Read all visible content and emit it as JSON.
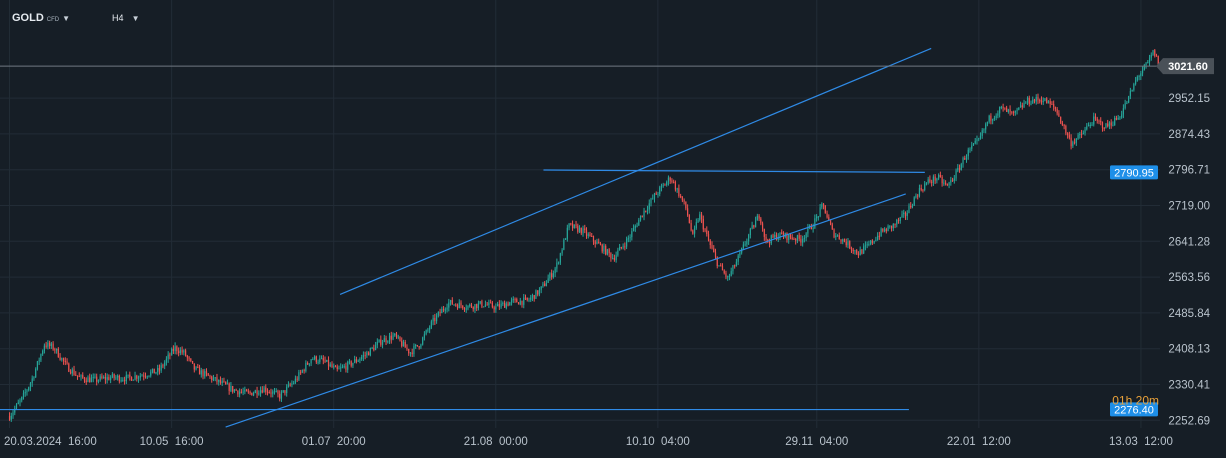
{
  "toolbar": {
    "symbol": "GOLD",
    "symbol_sub": "CFD",
    "timeframe": "H4",
    "caret_icon": "chevron-down-icon"
  },
  "chart_data": {
    "type": "candlestick",
    "title": "",
    "xlabel": "",
    "ylabel": "",
    "ylim": [
      2236,
      3100
    ],
    "y_ticks": [
      "3021.60",
      "2952.15",
      "2874.43",
      "2796.71",
      "2719.00",
      "2641.28",
      "2563.56",
      "2485.84",
      "2408.13",
      "2330.41",
      "2252.69"
    ],
    "x_ticks": [
      "20.03.2024  16:00",
      "10.05  16:00",
      "01.07  20:00",
      "21.08  00:00",
      "10.10  04:00",
      "29.11  04:00",
      "22.01  12:00",
      "13.03  12:00"
    ],
    "x_range_days": [
      -3,
      362
    ],
    "x_tick_days": [
      0,
      51,
      102,
      153,
      204,
      254,
      305,
      356
    ],
    "current_price": "3021.60",
    "price_tags": [
      "2790.95",
      "2276.40"
    ],
    "countdown": "01h 20m",
    "colors": {
      "up": "#26a69a",
      "down": "#ef5350",
      "trendline": "#2f8ae5",
      "tag_bg": "#1e8fe8",
      "current_tag_bg": "#4a5158",
      "countdown": "#e8a13a",
      "grid": "#222c36",
      "background": "#161e26"
    },
    "trendlines": [
      {
        "points": [
          [
            104,
            2526
          ],
          [
            290,
            3060
          ]
        ]
      },
      {
        "points": [
          [
            68,
            2238
          ],
          [
            282,
            2744
          ]
        ]
      },
      {
        "points": [
          [
            168,
            2796
          ],
          [
            288,
            2791
          ]
        ]
      },
      {
        "points": [
          [
            -3,
            2276
          ],
          [
            283,
            2276
          ]
        ]
      }
    ],
    "path_anchors": [
      [
        0,
        2262
      ],
      [
        4,
        2300
      ],
      [
        7,
        2340
      ],
      [
        11,
        2418
      ],
      [
        14,
        2410
      ],
      [
        18,
        2370
      ],
      [
        22,
        2345
      ],
      [
        27,
        2340
      ],
      [
        32,
        2346
      ],
      [
        37,
        2344
      ],
      [
        42,
        2352
      ],
      [
        47,
        2360
      ],
      [
        52,
        2410
      ],
      [
        55,
        2398
      ],
      [
        58,
        2365
      ],
      [
        62,
        2350
      ],
      [
        66,
        2335
      ],
      [
        70,
        2320
      ],
      [
        75,
        2310
      ],
      [
        80,
        2322
      ],
      [
        85,
        2305
      ],
      [
        90,
        2340
      ],
      [
        95,
        2388
      ],
      [
        99,
        2380
      ],
      [
        103,
        2360
      ],
      [
        107,
        2374
      ],
      [
        112,
        2395
      ],
      [
        117,
        2425
      ],
      [
        121,
        2436
      ],
      [
        126,
        2400
      ],
      [
        129,
        2418
      ],
      [
        133,
        2465
      ],
      [
        138,
        2508
      ],
      [
        144,
        2500
      ],
      [
        149,
        2505
      ],
      [
        153,
        2498
      ],
      [
        158,
        2510
      ],
      [
        163,
        2512
      ],
      [
        167,
        2535
      ],
      [
        172,
        2585
      ],
      [
        176,
        2675
      ],
      [
        180,
        2665
      ],
      [
        186,
        2630
      ],
      [
        190,
        2605
      ],
      [
        195,
        2650
      ],
      [
        199,
        2700
      ],
      [
        203,
        2740
      ],
      [
        208,
        2780
      ],
      [
        211,
        2740
      ],
      [
        213,
        2710
      ],
      [
        215,
        2650
      ],
      [
        217,
        2700
      ],
      [
        220,
        2640
      ],
      [
        223,
        2590
      ],
      [
        226,
        2560
      ],
      [
        229,
        2600
      ],
      [
        233,
        2660
      ],
      [
        236,
        2700
      ],
      [
        238,
        2640
      ],
      [
        242,
        2655
      ],
      [
        246,
        2650
      ],
      [
        249,
        2645
      ],
      [
        253,
        2680
      ],
      [
        256,
        2720
      ],
      [
        259,
        2660
      ],
      [
        263,
        2640
      ],
      [
        267,
        2615
      ],
      [
        270,
        2630
      ],
      [
        274,
        2660
      ],
      [
        278,
        2675
      ],
      [
        282,
        2700
      ],
      [
        286,
        2750
      ],
      [
        289,
        2770
      ],
      [
        292,
        2780
      ],
      [
        295,
        2760
      ],
      [
        298,
        2790
      ],
      [
        301,
        2830
      ],
      [
        305,
        2860
      ],
      [
        308,
        2905
      ],
      [
        312,
        2930
      ],
      [
        316,
        2915
      ],
      [
        320,
        2945
      ],
      [
        325,
        2950
      ],
      [
        329,
        2930
      ],
      [
        332,
        2885
      ],
      [
        334,
        2855
      ],
      [
        337,
        2870
      ],
      [
        341,
        2905
      ],
      [
        345,
        2890
      ],
      [
        349,
        2910
      ],
      [
        352,
        2950
      ],
      [
        355,
        3000
      ],
      [
        358,
        3025
      ],
      [
        360,
        3054
      ],
      [
        362,
        3018
      ]
    ]
  }
}
